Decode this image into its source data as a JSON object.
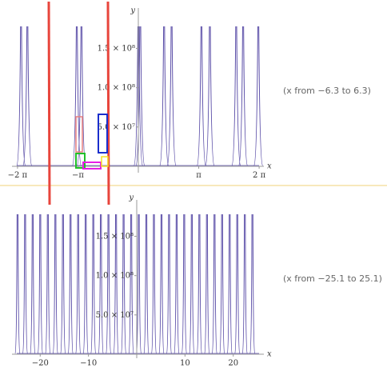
{
  "chart_data": [
    {
      "type": "line",
      "x_from": -6.3,
      "x_to": 6.3,
      "ylim": [
        0,
        190000000
      ],
      "xlabel": "x",
      "ylabel": "y",
      "range_caption": "(x from −6.3 to 6.3)",
      "x_ticks": [
        {
          "value": -6.2832,
          "label": "−2 π"
        },
        {
          "value": -3.1416,
          "label": "−π"
        },
        {
          "value": 3.1416,
          "label": "π"
        },
        {
          "value": 6.2832,
          "label": "2 π"
        }
      ],
      "y_ticks": [
        {
          "value": 50000000,
          "label": "5.0 × 10⁷"
        },
        {
          "value": 100000000,
          "label": "1.0 × 10⁸"
        },
        {
          "value": 150000000,
          "label": "1.5 × 10⁸"
        }
      ],
      "spike_positions": [
        -6.1,
        -5.77,
        -3.2,
        -2.96,
        0,
        0.1,
        1.34,
        1.73,
        3.28,
        3.72,
        5.09,
        5.45,
        6.24
      ],
      "series": [
        {
          "color": "#5b4ea8"
        }
      ]
    },
    {
      "type": "line",
      "x_from": -25.1,
      "x_to": 25.1,
      "ylim": [
        0,
        190000000
      ],
      "xlabel": "x",
      "ylabel": "y",
      "range_caption": "(x from −25.1 to 25.1)",
      "x_ticks": [
        {
          "value": -20,
          "label": "−20"
        },
        {
          "value": -10,
          "label": "−10"
        },
        {
          "value": 10,
          "label": "10"
        },
        {
          "value": 20,
          "label": "20"
        }
      ],
      "y_ticks": [
        {
          "value": 50000000,
          "label": "5.0 × 10⁷"
        },
        {
          "value": 100000000,
          "label": "1.0 × 10⁸"
        },
        {
          "value": 150000000,
          "label": "1.5 × 10⁸"
        }
      ],
      "spike_period": 1.57,
      "series": [
        {
          "color": "#5b4ea8"
        }
      ]
    }
  ],
  "overlays": {
    "red_lines_color": "#e8453c",
    "divider_color": "#f2d27a",
    "boxes": [
      {
        "color": "#e88080"
      },
      {
        "color": "#22c02a"
      },
      {
        "color": "#e61ee6"
      },
      {
        "color": "#f5e020"
      },
      {
        "color": "#1a2ecc"
      }
    ]
  }
}
